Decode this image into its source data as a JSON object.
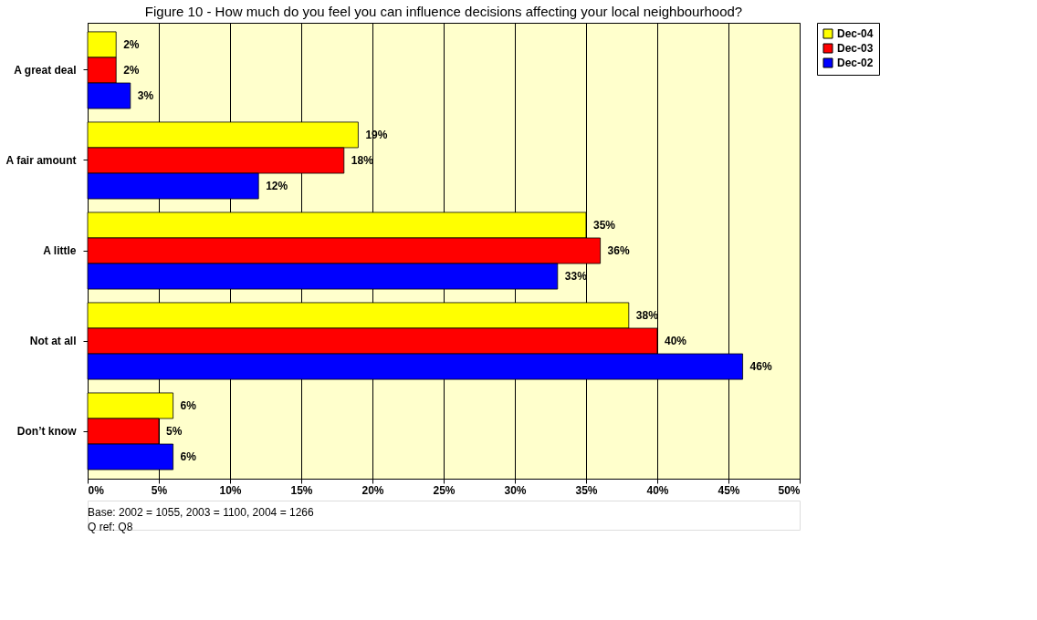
{
  "chart_data": {
    "type": "bar",
    "orientation": "horizontal",
    "title": "Figure 10 - How much do you feel you can influence decisions affecting your local neighbourhood?",
    "categories": [
      "A great deal",
      "A fair amount",
      "A little",
      "Not at all",
      "Don’t know"
    ],
    "series": [
      {
        "name": "Dec-04",
        "color": "#ffff00",
        "values": [
          2,
          19,
          35,
          38,
          6
        ],
        "value_labels": [
          "2%",
          "19%",
          "35%",
          "38%",
          "6%"
        ]
      },
      {
        "name": "Dec-03",
        "color": "#ff0000",
        "values": [
          2,
          18,
          36,
          40,
          5
        ],
        "value_labels": [
          "2%",
          "18%",
          "36%",
          "40%",
          "5%"
        ]
      },
      {
        "name": "Dec-02",
        "color": "#0000ff",
        "values": [
          3,
          12,
          33,
          46,
          6
        ],
        "value_labels": [
          "3%",
          "12%",
          "33%",
          "46%",
          "6%"
        ]
      }
    ],
    "xlim": [
      0,
      50
    ],
    "xticks": [
      {
        "value": 0,
        "label": "0%"
      },
      {
        "value": 5,
        "label": "5%"
      },
      {
        "value": 10,
        "label": "10%"
      },
      {
        "value": 15,
        "label": "15%"
      },
      {
        "value": 20,
        "label": "20%"
      },
      {
        "value": 25,
        "label": "25%"
      },
      {
        "value": 30,
        "label": "30%"
      },
      {
        "value": 35,
        "label": "35%"
      },
      {
        "value": 40,
        "label": "40%"
      },
      {
        "value": 45,
        "label": "45%"
      },
      {
        "value": 50,
        "label": "50%"
      }
    ],
    "grid": "x",
    "legend": "right",
    "annotations": [
      "Base: 2002 = 1055, 2003 = 1100, 2004 = 1266",
      "Q ref: Q8"
    ]
  }
}
